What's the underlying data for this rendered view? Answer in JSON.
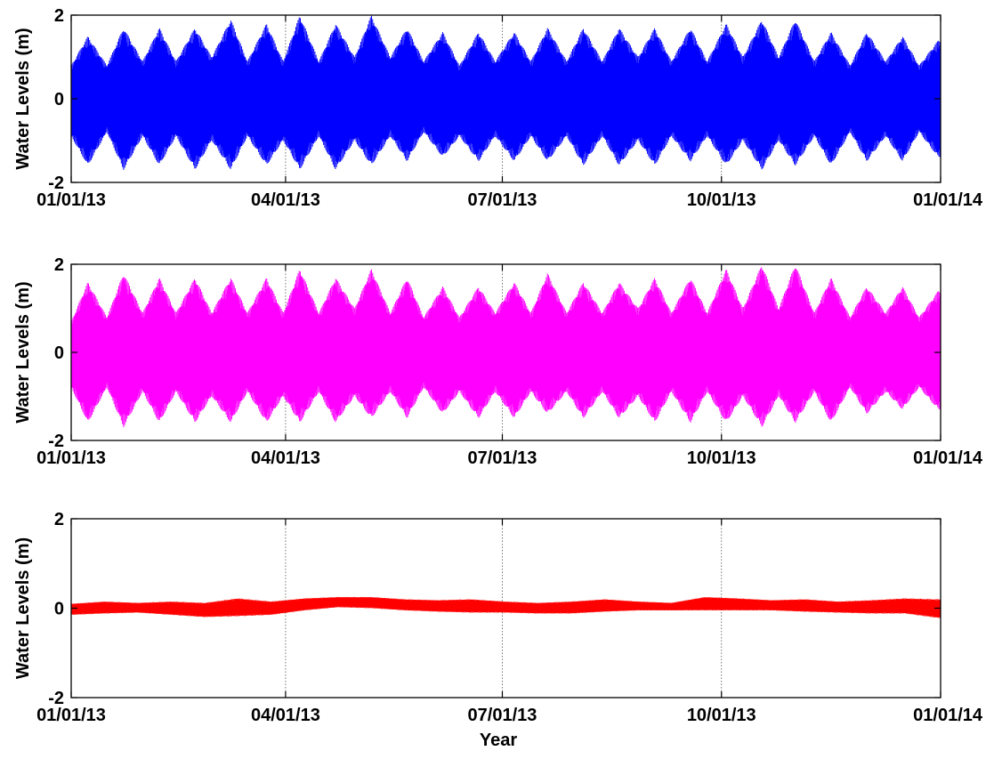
{
  "figure": {
    "xlabel": "Year"
  },
  "chart_data": [
    {
      "type": "line",
      "title": "",
      "ylabel": "Water Levels (m)",
      "xlabel": "",
      "ylim": [
        -2,
        2
      ],
      "yticks": [
        -2,
        0,
        2
      ],
      "ytick_labels": [
        "-2",
        "0",
        "2"
      ],
      "xlim": [
        "2013-01-01",
        "2014-01-01"
      ],
      "xticks": [
        "2013-01-01",
        "2013-04-01",
        "2013-07-01",
        "2013-10-01",
        "2014-01-01"
      ],
      "xtick_labels": [
        "01/01/13",
        "04/01/13",
        "07/01/13",
        "10/01/13",
        "01/01/14"
      ],
      "grid": "vertical dotted at x ticks",
      "series": [
        {
          "color": "#0000ff",
          "signal": "dense semi-diurnal tidal oscillation with spring-neap envelope",
          "x": [
            "2013-01-01",
            "2013-01-08",
            "2013-01-16",
            "2013-01-23",
            "2013-01-31",
            "2013-02-07",
            "2013-02-14",
            "2013-02-22",
            "2013-03-01",
            "2013-03-09",
            "2013-03-16",
            "2013-03-24",
            "2013-03-31",
            "2013-04-07",
            "2013-04-15",
            "2013-04-22",
            "2013-04-30",
            "2013-05-07",
            "2013-05-15",
            "2013-05-22",
            "2013-05-29",
            "2013-06-06",
            "2013-06-13",
            "2013-06-21",
            "2013-06-28",
            "2013-07-06",
            "2013-07-13",
            "2013-07-20",
            "2013-07-28",
            "2013-08-04",
            "2013-08-12",
            "2013-08-19",
            "2013-08-27",
            "2013-09-03",
            "2013-09-10",
            "2013-09-18",
            "2013-09-25",
            "2013-10-03",
            "2013-10-10",
            "2013-10-18",
            "2013-10-25",
            "2013-11-01",
            "2013-11-09",
            "2013-11-16",
            "2013-11-24",
            "2013-12-01",
            "2013-12-09",
            "2013-12-16",
            "2013-12-23",
            "2013-12-31"
          ],
          "upper_envelope": [
            0.8,
            1.5,
            0.8,
            1.7,
            0.9,
            1.7,
            0.9,
            1.7,
            1.0,
            1.9,
            0.9,
            1.8,
            0.9,
            2.0,
            0.9,
            1.8,
            1.0,
            2.0,
            1.0,
            1.7,
            0.9,
            1.6,
            0.8,
            1.6,
            0.9,
            1.6,
            0.9,
            1.7,
            0.9,
            1.7,
            0.9,
            1.7,
            1.0,
            1.7,
            0.9,
            1.7,
            0.9,
            1.8,
            1.0,
            1.9,
            1.0,
            1.9,
            0.9,
            1.6,
            0.8,
            1.6,
            0.9,
            1.5,
            0.8,
            1.4
          ],
          "lower_envelope": [
            -0.9,
            -1.6,
            -0.8,
            -1.7,
            -0.9,
            -1.6,
            -0.9,
            -1.7,
            -1.0,
            -1.7,
            -0.9,
            -1.6,
            -1.0,
            -1.7,
            -0.9,
            -1.7,
            -1.0,
            -1.6,
            -0.9,
            -1.5,
            -0.8,
            -1.4,
            -0.9,
            -1.5,
            -0.9,
            -1.5,
            -0.9,
            -1.5,
            -0.9,
            -1.6,
            -0.9,
            -1.6,
            -1.0,
            -1.6,
            -0.9,
            -1.5,
            -0.9,
            -1.6,
            -1.0,
            -1.7,
            -1.0,
            -1.6,
            -0.9,
            -1.6,
            -0.8,
            -1.5,
            -0.9,
            -1.5,
            -0.8,
            -1.4
          ]
        }
      ]
    },
    {
      "type": "line",
      "title": "",
      "ylabel": "Water Levels (m)",
      "xlabel": "",
      "ylim": [
        -2,
        2
      ],
      "yticks": [
        -2,
        0,
        2
      ],
      "ytick_labels": [
        "-2",
        "0",
        "2"
      ],
      "xlim": [
        "2013-01-01",
        "2014-01-01"
      ],
      "xticks": [
        "2013-01-01",
        "2013-04-01",
        "2013-07-01",
        "2013-10-01",
        "2014-01-01"
      ],
      "xtick_labels": [
        "01/01/13",
        "04/01/13",
        "07/01/13",
        "10/01/13",
        "01/01/14"
      ],
      "grid": "vertical dotted at x ticks",
      "series": [
        {
          "color": "#ff00ff",
          "signal": "dense semi-diurnal tidal oscillation with spring-neap envelope",
          "x": [
            "2013-01-01",
            "2013-01-08",
            "2013-01-16",
            "2013-01-23",
            "2013-01-31",
            "2013-02-07",
            "2013-02-14",
            "2013-02-22",
            "2013-03-01",
            "2013-03-09",
            "2013-03-16",
            "2013-03-24",
            "2013-03-31",
            "2013-04-07",
            "2013-04-15",
            "2013-04-22",
            "2013-04-30",
            "2013-05-07",
            "2013-05-15",
            "2013-05-22",
            "2013-05-29",
            "2013-06-06",
            "2013-06-13",
            "2013-06-21",
            "2013-06-28",
            "2013-07-06",
            "2013-07-13",
            "2013-07-20",
            "2013-07-28",
            "2013-08-04",
            "2013-08-12",
            "2013-08-19",
            "2013-08-27",
            "2013-09-03",
            "2013-09-10",
            "2013-09-18",
            "2013-09-25",
            "2013-10-03",
            "2013-10-10",
            "2013-10-18",
            "2013-10-25",
            "2013-11-01",
            "2013-11-09",
            "2013-11-16",
            "2013-11-24",
            "2013-12-01",
            "2013-12-09",
            "2013-12-16",
            "2013-12-23",
            "2013-12-31"
          ],
          "upper_envelope": [
            0.7,
            1.6,
            0.8,
            1.8,
            0.9,
            1.7,
            0.9,
            1.7,
            0.9,
            1.7,
            0.9,
            1.7,
            0.9,
            1.9,
            0.9,
            1.7,
            1.0,
            1.9,
            0.9,
            1.7,
            0.8,
            1.5,
            0.8,
            1.5,
            0.9,
            1.6,
            0.9,
            1.8,
            0.9,
            1.6,
            0.9,
            1.6,
            1.0,
            1.7,
            0.9,
            1.7,
            0.9,
            1.9,
            1.0,
            2.0,
            1.0,
            2.0,
            0.9,
            1.7,
            0.8,
            1.5,
            0.9,
            1.5,
            0.8,
            1.4
          ],
          "lower_envelope": [
            -0.8,
            -1.6,
            -0.8,
            -1.7,
            -0.9,
            -1.6,
            -0.9,
            -1.6,
            -1.0,
            -1.6,
            -0.9,
            -1.6,
            -1.0,
            -1.6,
            -0.9,
            -1.6,
            -1.0,
            -1.5,
            -0.9,
            -1.5,
            -0.8,
            -1.4,
            -0.9,
            -1.5,
            -0.9,
            -1.5,
            -0.9,
            -1.4,
            -0.9,
            -1.5,
            -0.9,
            -1.5,
            -1.0,
            -1.6,
            -0.9,
            -1.6,
            -0.9,
            -1.6,
            -1.0,
            -1.7,
            -1.0,
            -1.6,
            -0.9,
            -1.6,
            -0.8,
            -1.4,
            -0.9,
            -1.3,
            -0.8,
            -1.3
          ]
        }
      ]
    },
    {
      "type": "line",
      "title": "",
      "ylabel": "Water Levels (m)",
      "xlabel": "",
      "ylim": [
        -2,
        2
      ],
      "yticks": [
        -2,
        0,
        2
      ],
      "ytick_labels": [
        "-2",
        "0",
        "2"
      ],
      "xlim": [
        "2013-01-01",
        "2014-01-01"
      ],
      "xticks": [
        "2013-01-01",
        "2013-04-01",
        "2013-07-01",
        "2013-10-01",
        "2014-01-01"
      ],
      "xtick_labels": [
        "01/01/13",
        "04/01/13",
        "07/01/13",
        "10/01/13",
        "01/01/14"
      ],
      "grid": "vertical dotted at x ticks",
      "series": [
        {
          "color": "#ff0000",
          "signal": "small dense oscillation (residual) around zero",
          "x": [
            "2013-01-01",
            "2013-01-15",
            "2013-01-29",
            "2013-02-12",
            "2013-02-26",
            "2013-03-12",
            "2013-03-26",
            "2013-04-09",
            "2013-04-23",
            "2013-05-07",
            "2013-05-21",
            "2013-06-04",
            "2013-06-18",
            "2013-07-02",
            "2013-07-16",
            "2013-07-30",
            "2013-08-13",
            "2013-08-27",
            "2013-09-10",
            "2013-09-24",
            "2013-10-08",
            "2013-10-22",
            "2013-11-05",
            "2013-11-19",
            "2013-12-03",
            "2013-12-17",
            "2013-12-31"
          ],
          "upper_envelope": [
            0.1,
            0.15,
            0.12,
            0.15,
            0.12,
            0.22,
            0.15,
            0.22,
            0.25,
            0.25,
            0.2,
            0.18,
            0.2,
            0.15,
            0.12,
            0.15,
            0.2,
            0.15,
            0.12,
            0.25,
            0.22,
            0.18,
            0.2,
            0.15,
            0.18,
            0.22,
            0.2
          ],
          "lower_envelope": [
            -0.15,
            -0.12,
            -0.1,
            -0.15,
            -0.2,
            -0.18,
            -0.15,
            -0.05,
            0.02,
            0.0,
            -0.05,
            -0.08,
            -0.1,
            -0.1,
            -0.12,
            -0.12,
            -0.08,
            -0.05,
            -0.05,
            -0.05,
            -0.05,
            -0.05,
            -0.08,
            -0.1,
            -0.12,
            -0.12,
            -0.22
          ]
        }
      ]
    }
  ]
}
